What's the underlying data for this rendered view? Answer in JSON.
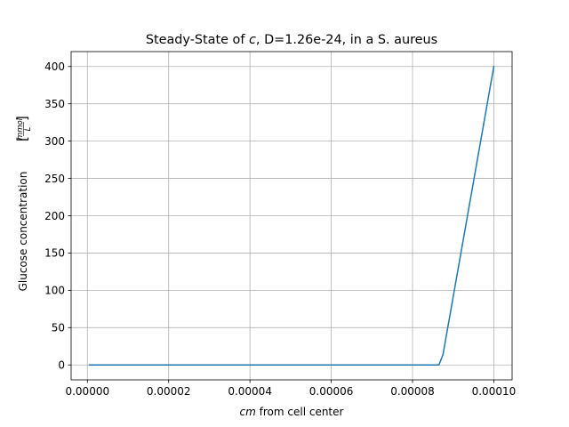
{
  "chart_data": {
    "type": "line",
    "title_prefix": "Steady-State of ",
    "title_var": "c",
    "title_suffix": ", D=1.26e-24, in a S. aureus",
    "xlabel_var": "cm",
    "xlabel_rest": " from cell center",
    "ylabel": "Glucose concentration",
    "ylabel_unit_num": "mmol",
    "ylabel_unit_den": "L",
    "xlim": [
      -4e-06,
      0.0001045
    ],
    "ylim": [
      -20,
      420
    ],
    "x_ticks": [
      0,
      2e-05,
      4e-05,
      6e-05,
      8e-05,
      0.0001
    ],
    "x_tick_labels": [
      "0.00000",
      "0.00002",
      "0.00004",
      "0.00006",
      "0.00008",
      "0.00010"
    ],
    "y_ticks": [
      0,
      50,
      100,
      150,
      200,
      250,
      300,
      350,
      400
    ],
    "y_tick_labels": [
      "0",
      "50",
      "100",
      "150",
      "200",
      "250",
      "300",
      "350",
      "400"
    ],
    "grid": true,
    "series": [
      {
        "color": "#1f77b4",
        "x": [
          5e-07,
          8.65e-05,
          8.75e-05,
          0.0001
        ],
        "y": [
          0,
          0,
          14,
          400
        ]
      }
    ]
  }
}
